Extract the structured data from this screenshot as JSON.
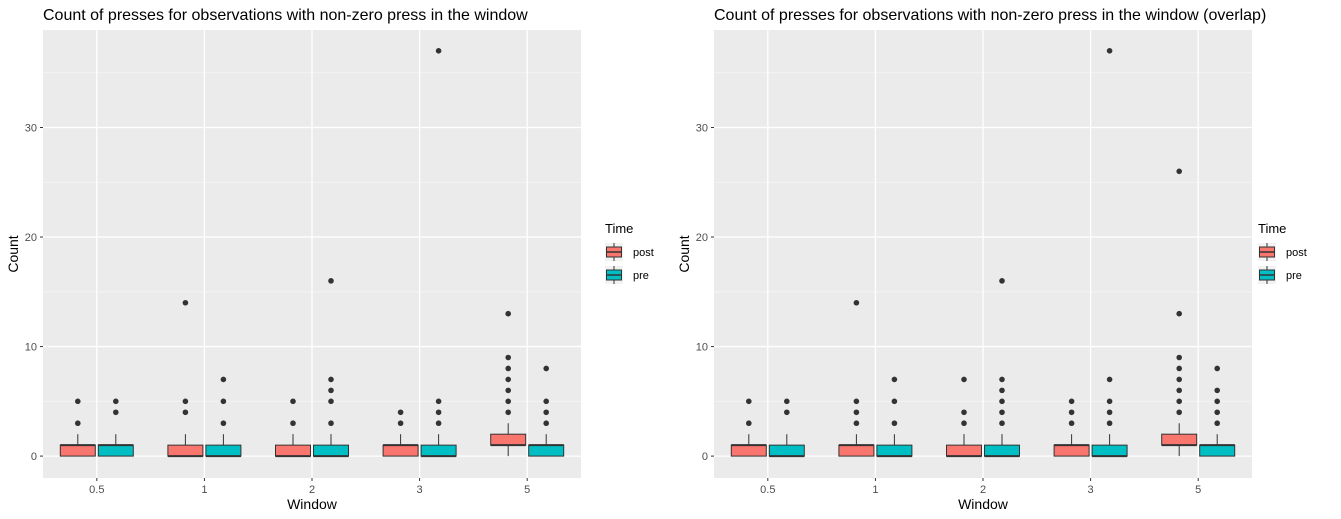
{
  "chart_data": [
    {
      "type": "box",
      "title": "Count of presses for observations with non-zero press in the window",
      "xlabel": "Window",
      "ylabel": "Count",
      "categories": [
        "0.5",
        "1",
        "2",
        "3",
        "5"
      ],
      "ylim": [
        -2,
        38.9
      ],
      "yticks": [
        0,
        10,
        20,
        30
      ],
      "grid": true,
      "legend": {
        "title": "Time",
        "position": "right",
        "entries": [
          "post",
          "pre"
        ]
      },
      "series": [
        {
          "name": "post",
          "color": "#F8766D",
          "boxes": [
            {
              "q1": 0,
              "median": 1,
              "q3": 1,
              "whisker_low": 0,
              "whisker_high": 2,
              "outliers": [
                3,
                5
              ]
            },
            {
              "q1": 0,
              "median": 0,
              "q3": 1,
              "whisker_low": 0,
              "whisker_high": 2,
              "outliers": [
                4,
                5,
                14
              ]
            },
            {
              "q1": 0,
              "median": 0,
              "q3": 1,
              "whisker_low": 0,
              "whisker_high": 2,
              "outliers": [
                3,
                5
              ]
            },
            {
              "q1": 0,
              "median": 1,
              "q3": 1,
              "whisker_low": 0,
              "whisker_high": 2,
              "outliers": [
                3,
                4
              ]
            },
            {
              "q1": 1,
              "median": 1,
              "q3": 2,
              "whisker_low": 0,
              "whisker_high": 3,
              "outliers": [
                4,
                5,
                6,
                7,
                8,
                9,
                13
              ]
            }
          ]
        },
        {
          "name": "pre",
          "color": "#00BFC4",
          "boxes": [
            {
              "q1": 0,
              "median": 1,
              "q3": 1,
              "whisker_low": 0,
              "whisker_high": 2,
              "outliers": [
                4,
                5
              ]
            },
            {
              "q1": 0,
              "median": 0,
              "q3": 1,
              "whisker_low": 0,
              "whisker_high": 2,
              "outliers": [
                3,
                5,
                7
              ]
            },
            {
              "q1": 0,
              "median": 0,
              "q3": 1,
              "whisker_low": 0,
              "whisker_high": 2,
              "outliers": [
                3,
                5,
                6,
                7,
                16
              ]
            },
            {
              "q1": 0,
              "median": 0,
              "q3": 1,
              "whisker_low": 0,
              "whisker_high": 2,
              "outliers": [
                3,
                4,
                5,
                37
              ]
            },
            {
              "q1": 0,
              "median": 1,
              "q3": 1,
              "whisker_low": 0,
              "whisker_high": 2,
              "outliers": [
                3,
                4,
                5,
                8
              ]
            }
          ]
        }
      ]
    },
    {
      "type": "box",
      "title": "Count of presses for observations with non-zero press in the window (overlap)",
      "xlabel": "Window",
      "ylabel": "Count",
      "categories": [
        "0.5",
        "1",
        "2",
        "3",
        "5"
      ],
      "ylim": [
        -2,
        38.9
      ],
      "yticks": [
        0,
        10,
        20,
        30
      ],
      "grid": true,
      "legend": {
        "title": "Time",
        "position": "right",
        "entries": [
          "post",
          "pre"
        ]
      },
      "series": [
        {
          "name": "post",
          "color": "#F8766D",
          "boxes": [
            {
              "q1": 0,
              "median": 1,
              "q3": 1,
              "whisker_low": 0,
              "whisker_high": 2,
              "outliers": [
                3,
                5
              ]
            },
            {
              "q1": 0,
              "median": 1,
              "q3": 1,
              "whisker_low": 0,
              "whisker_high": 2,
              "outliers": [
                3,
                4,
                5,
                14
              ]
            },
            {
              "q1": 0,
              "median": 0,
              "q3": 1,
              "whisker_low": 0,
              "whisker_high": 2,
              "outliers": [
                3,
                4,
                7
              ]
            },
            {
              "q1": 0,
              "median": 1,
              "q3": 1,
              "whisker_low": 0,
              "whisker_high": 2,
              "outliers": [
                3,
                4,
                5
              ]
            },
            {
              "q1": 1,
              "median": 1,
              "q3": 2,
              "whisker_low": 0,
              "whisker_high": 3,
              "outliers": [
                4,
                5,
                6,
                7,
                8,
                9,
                13,
                26
              ]
            }
          ]
        },
        {
          "name": "pre",
          "color": "#00BFC4",
          "boxes": [
            {
              "q1": 0,
              "median": 0,
              "q3": 1,
              "whisker_low": 0,
              "whisker_high": 2,
              "outliers": [
                4,
                5
              ]
            },
            {
              "q1": 0,
              "median": 0,
              "q3": 1,
              "whisker_low": 0,
              "whisker_high": 2,
              "outliers": [
                3,
                5,
                7
              ]
            },
            {
              "q1": 0,
              "median": 0,
              "q3": 1,
              "whisker_low": 0,
              "whisker_high": 2,
              "outliers": [
                3,
                4,
                5,
                6,
                7,
                16
              ]
            },
            {
              "q1": 0,
              "median": 0,
              "q3": 1,
              "whisker_low": 0,
              "whisker_high": 2,
              "outliers": [
                3,
                4,
                5,
                7,
                37
              ]
            },
            {
              "q1": 0,
              "median": 1,
              "q3": 1,
              "whisker_low": 0,
              "whisker_high": 2,
              "outliers": [
                3,
                4,
                5,
                6,
                8
              ]
            }
          ]
        }
      ]
    }
  ]
}
